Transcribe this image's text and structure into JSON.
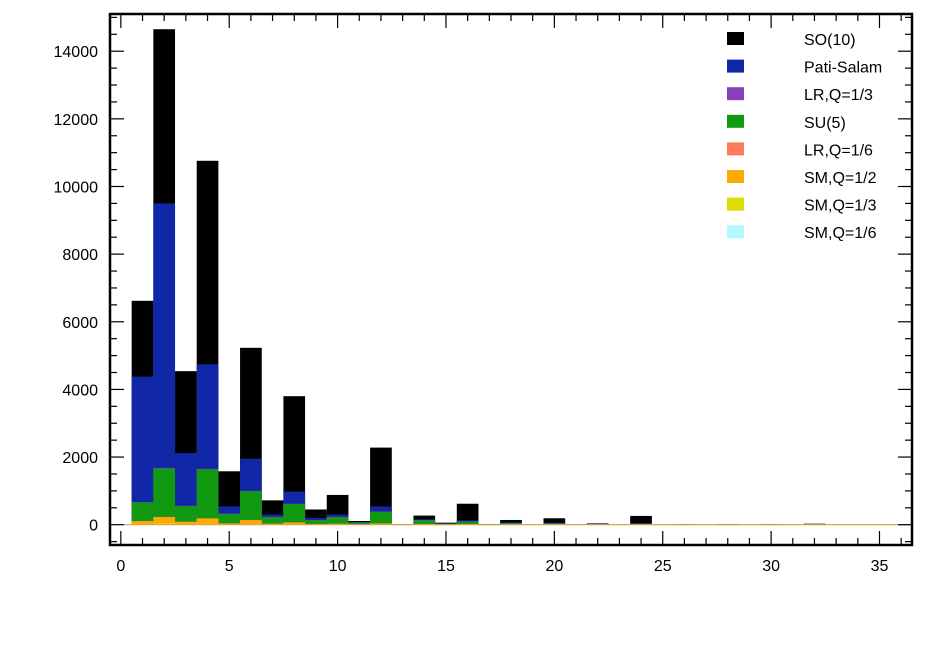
{
  "chart_data": {
    "type": "bar",
    "stacked": true,
    "title": "",
    "xlabel": "",
    "ylabel": "",
    "xlim": [
      -0.5,
      36.5
    ],
    "ylim": [
      -600,
      15100
    ],
    "x_ticks": [
      0,
      5,
      10,
      15,
      20,
      25,
      30,
      35
    ],
    "y_ticks": [
      0,
      2000,
      4000,
      6000,
      8000,
      10000,
      12000,
      14000
    ],
    "bin_width": 1,
    "bins": [
      1,
      2,
      3,
      4,
      5,
      6,
      7,
      8,
      9,
      10,
      11,
      12,
      13,
      14,
      15,
      16,
      17,
      18,
      19,
      20,
      21,
      22,
      23,
      24,
      25,
      26,
      27,
      28,
      29,
      30,
      31,
      32,
      33,
      34,
      35,
      36
    ],
    "series": [
      {
        "name": "SO(10)",
        "color": "#000000",
        "totals": [
          6620,
          14650,
          4540,
          10760,
          1580,
          5230,
          720,
          3800,
          450,
          880,
          110,
          2280,
          20,
          270,
          60,
          620,
          20,
          140,
          10,
          190,
          10,
          40,
          10,
          260,
          10,
          20,
          10,
          20,
          10,
          20,
          10,
          30,
          10,
          10,
          10,
          10
        ]
      },
      {
        "name": "Pati-Salam",
        "color": "#1028a8",
        "totals": [
          4380,
          9500,
          2120,
          4740,
          540,
          1950,
          300,
          980,
          200,
          300,
          80,
          540,
          20,
          160,
          40,
          130,
          10,
          70,
          5,
          60,
          5,
          30,
          5,
          40,
          5,
          10,
          5,
          10,
          5,
          10,
          5,
          10,
          5,
          5,
          5,
          5
        ]
      },
      {
        "name": "LR,Q=1/3",
        "color": "#8a3fbf",
        "totals": [
          670,
          1680,
          560,
          1650,
          330,
          1000,
          230,
          620,
          140,
          230,
          70,
          390,
          20,
          140,
          30,
          100,
          10,
          50,
          5,
          40,
          5,
          20,
          5,
          30,
          5,
          10,
          5,
          10,
          5,
          10,
          5,
          10,
          5,
          5,
          5,
          5
        ]
      },
      {
        "name": "SU(5)",
        "color": "#119911",
        "totals": [
          660,
          1660,
          550,
          1640,
          320,
          990,
          220,
          610,
          130,
          220,
          60,
          380,
          15,
          130,
          25,
          90,
          8,
          45,
          4,
          35,
          4,
          15,
          4,
          25,
          4,
          8,
          4,
          8,
          4,
          8,
          4,
          8,
          4,
          4,
          4,
          4
        ]
      },
      {
        "name": "LR,Q=1/6",
        "color": "#ff7a5a",
        "totals": [
          110,
          230,
          90,
          190,
          40,
          140,
          30,
          70,
          20,
          30,
          10,
          40,
          5,
          20,
          5,
          15,
          3,
          10,
          2,
          10,
          2,
          5,
          2,
          5,
          2,
          3,
          2,
          3,
          2,
          3,
          2,
          3,
          2,
          2,
          2,
          2
        ]
      },
      {
        "name": "SM,Q=1/2",
        "color": "#ffaa00",
        "totals": [
          100,
          220,
          80,
          180,
          35,
          130,
          25,
          60,
          15,
          25,
          8,
          35,
          4,
          15,
          4,
          12,
          2,
          8,
          1,
          8,
          1,
          4,
          1,
          4,
          1,
          2,
          1,
          2,
          1,
          2,
          1,
          2,
          1,
          1,
          1,
          1
        ]
      },
      {
        "name": "SM,Q=1/3",
        "color": "#dddd00",
        "totals": [
          20,
          40,
          15,
          30,
          8,
          20,
          5,
          10,
          3,
          5,
          2,
          6,
          1,
          3,
          1,
          2,
          0,
          1,
          0,
          1,
          0,
          0,
          0,
          0,
          0,
          0,
          0,
          0,
          0,
          0,
          0,
          0,
          0,
          0,
          0,
          0
        ]
      },
      {
        "name": "SM,Q=1/6",
        "color": "#b3f7ff",
        "totals": [
          5,
          10,
          4,
          8,
          2,
          5,
          1,
          3,
          1,
          1,
          0,
          2,
          0,
          1,
          0,
          0,
          0,
          0,
          0,
          0,
          0,
          0,
          0,
          0,
          0,
          0,
          0,
          0,
          0,
          0,
          0,
          0,
          0,
          0,
          0,
          0
        ]
      }
    ],
    "legend_placement": "top-right",
    "grid": false
  }
}
